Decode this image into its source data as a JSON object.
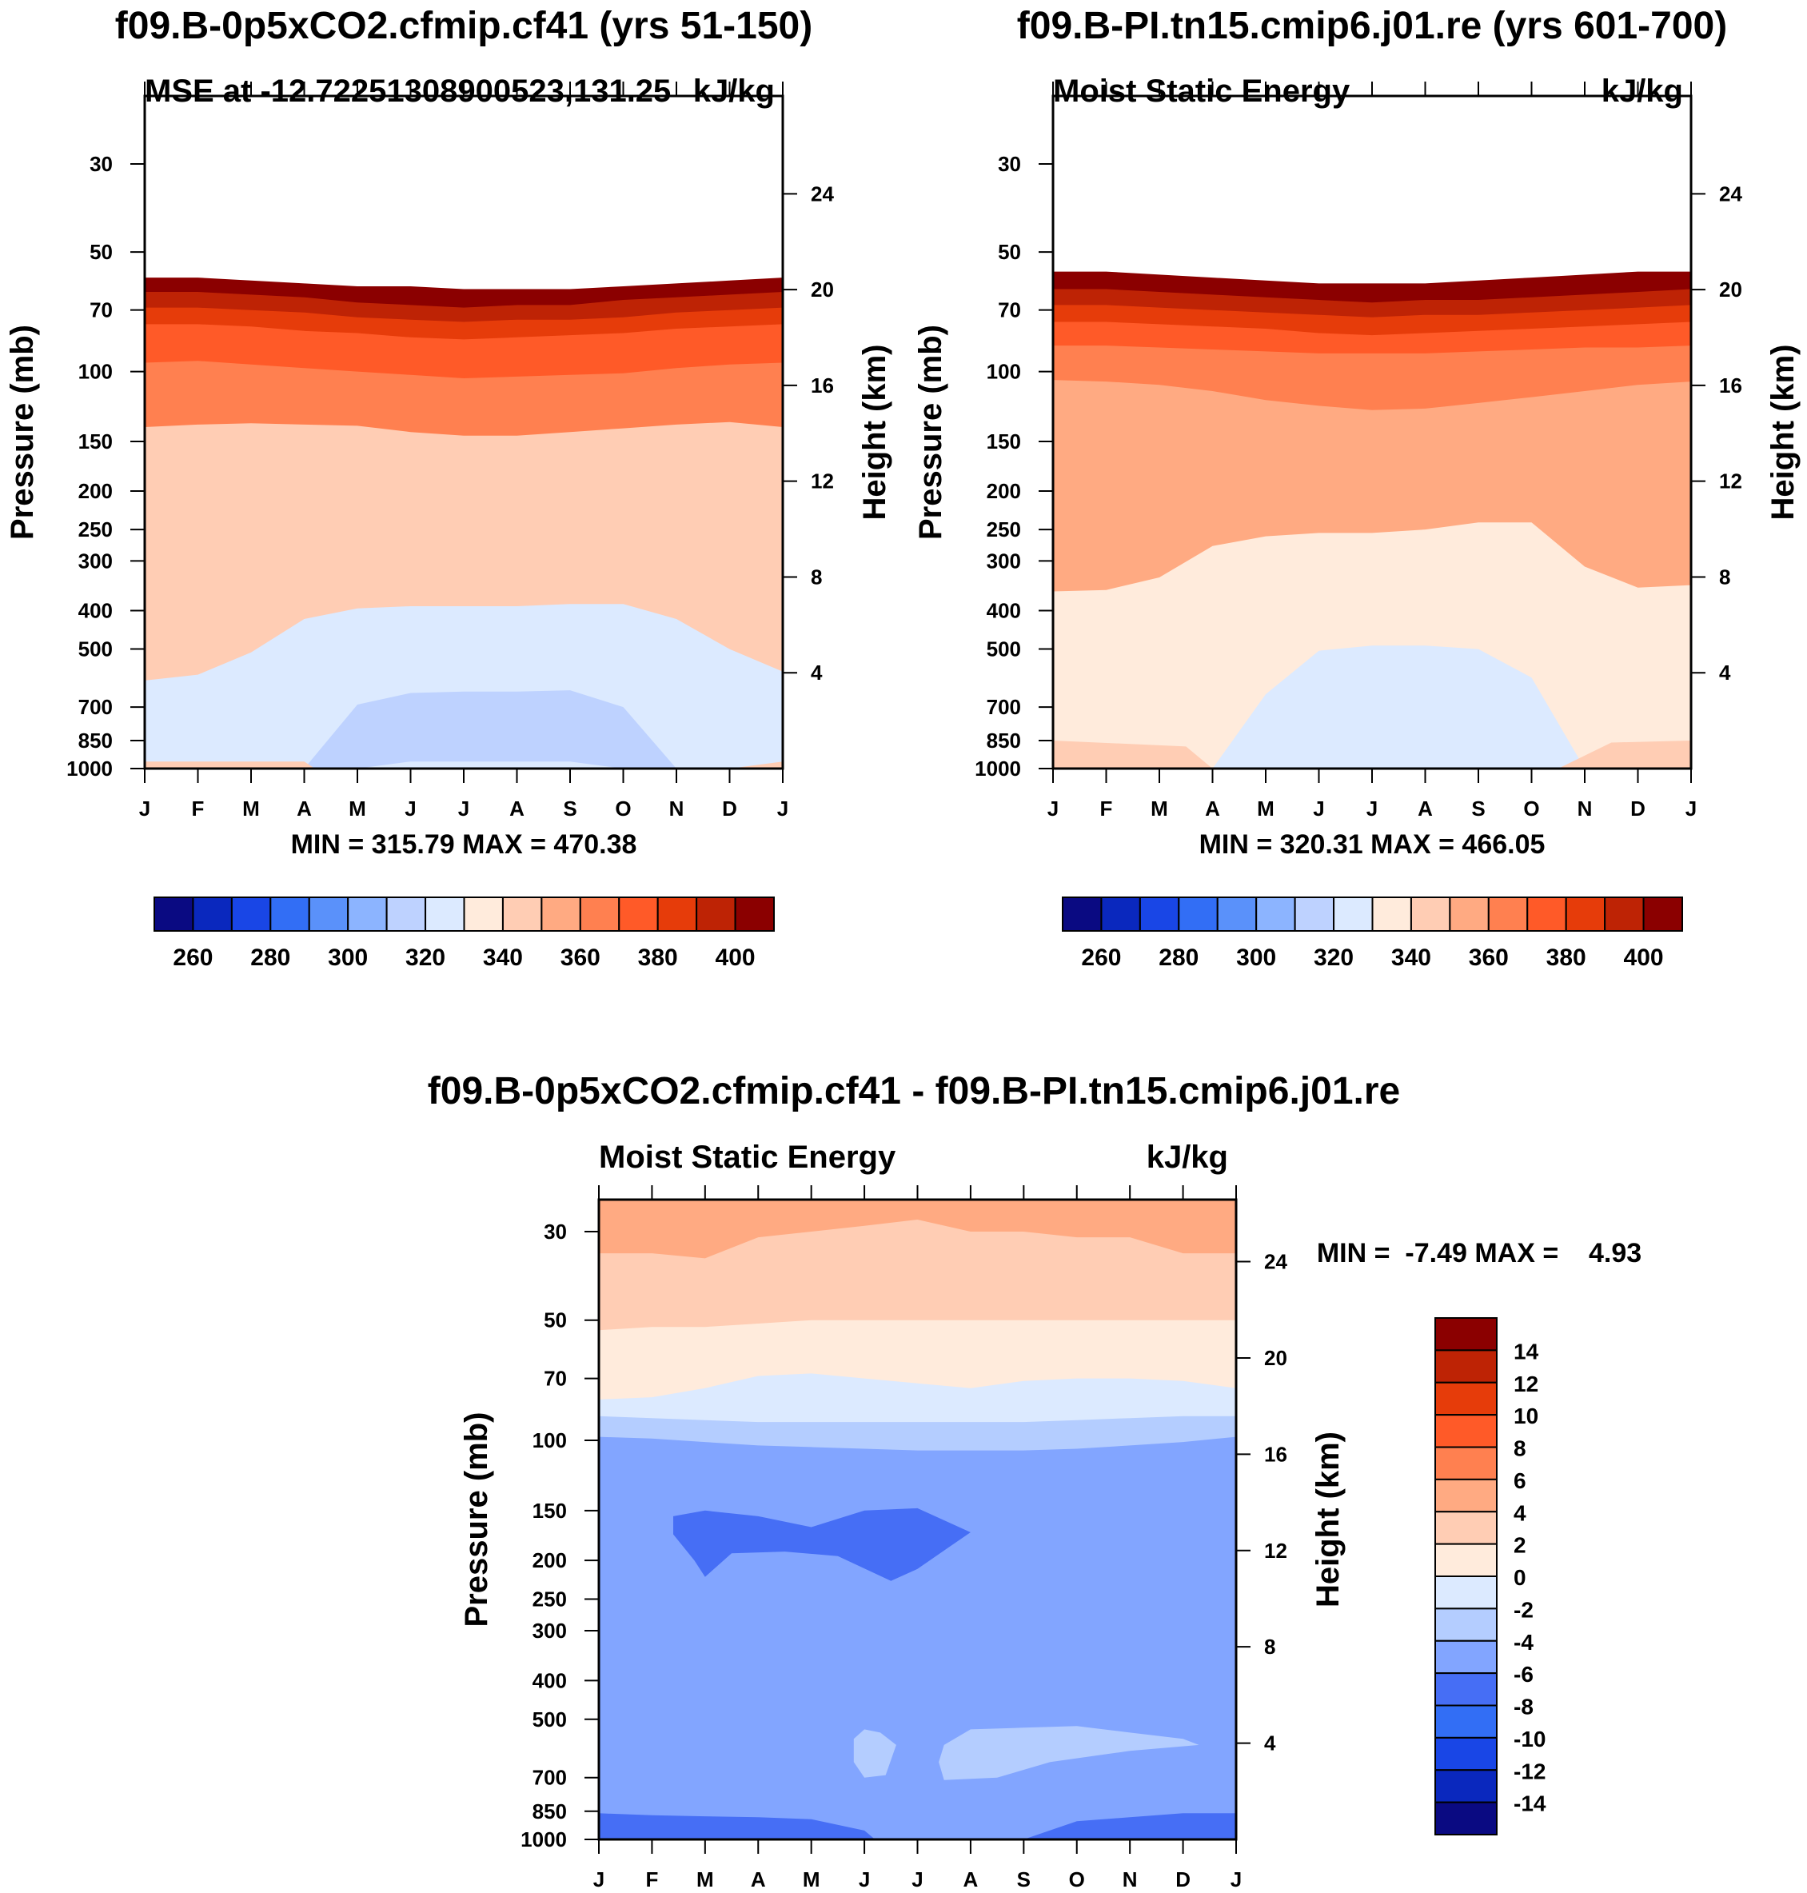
{
  "chart_data": [
    {
      "type": "contour",
      "panel": "top-left",
      "title": "f09.B-0p5xCO2.cfmip.cf41 (yrs 51-150)",
      "left_label": "MSE at -12.72251308900523,131.25",
      "units": "kJ/kg",
      "ylabel": "Pressure (mb)",
      "ylabel_right": "Height (km)",
      "x_ticks": [
        "J",
        "F",
        "M",
        "A",
        "M",
        "J",
        "J",
        "A",
        "S",
        "O",
        "N",
        "D",
        "J"
      ],
      "y_ticks": [
        "30",
        "50",
        "70",
        "100",
        "150",
        "200",
        "250",
        "300",
        "400",
        "500",
        "700",
        "850",
        "1000"
      ],
      "y_ticks_right": [
        "24",
        "20",
        "16",
        "12",
        "8",
        "4"
      ],
      "minmax_text": "MIN = 315.79 MAX = 470.38",
      "min": 315.79,
      "max": 470.38,
      "colorbar": {
        "orientation": "horizontal",
        "labels": [
          "260",
          "280",
          "300",
          "320",
          "340",
          "360",
          "380",
          "400"
        ],
        "levels": [
          250,
          260,
          270,
          280,
          290,
          300,
          310,
          320,
          330,
          340,
          350,
          360,
          370,
          380,
          390,
          400,
          410
        ],
        "colors": [
          "#0a0a82",
          "#0a28be",
          "#1946e6",
          "#326ef5",
          "#5a91fa",
          "#8cb4ff",
          "#bed2ff",
          "#dceaff",
          "#ffebdc",
          "#ffcdb4",
          "#ffaa82",
          "#ff8050",
          "#ff5a28",
          "#e63c0a",
          "#be2305",
          "#8b0000"
        ]
      },
      "bands": [
        {
          "level": ">400",
          "color": "#8b0000",
          "top_pressure": [
            58,
            58,
            59,
            60,
            61,
            61,
            62,
            62,
            62,
            61,
            60,
            59,
            58
          ]
        },
        {
          "level": "390-400",
          "color": "#be2305",
          "top_pressure": [
            63,
            63,
            64,
            65,
            67,
            68,
            69,
            68,
            68,
            66,
            65,
            64,
            63
          ]
        },
        {
          "level": "380-390",
          "color": "#e63c0a",
          "top_pressure": [
            69,
            69,
            70,
            71,
            73,
            74,
            75,
            74,
            74,
            73,
            71,
            70,
            69
          ]
        },
        {
          "level": "370-380",
          "color": "#ff5a28",
          "top_pressure": [
            76,
            76,
            77,
            79,
            80,
            82,
            83,
            82,
            81,
            80,
            78,
            77,
            76
          ]
        },
        {
          "level": "360-370",
          "color": "#ff8050",
          "top_pressure": [
            95,
            94,
            96,
            98,
            100,
            102,
            104,
            103,
            102,
            101,
            98,
            96,
            95
          ]
        },
        {
          "level": "340-360",
          "color": "#ffcdb4",
          "top_pressure": [
            138,
            136,
            135,
            136,
            137,
            142,
            145,
            145,
            142,
            139,
            136,
            134,
            138
          ]
        },
        {
          "level": "320-340",
          "color": "#dceaff",
          "top_pressure": [
            600,
            580,
            510,
            420,
            395,
            390,
            390,
            390,
            385,
            385,
            420,
            500,
            570
          ]
        },
        {
          "level": "310-320",
          "color": "#bed2ff",
          "top_pressure": [
            1000,
            1000,
            1000,
            1000,
            690,
            645,
            640,
            640,
            635,
            700,
            1000,
            1000,
            1000
          ]
        },
        {
          "level": "320-340 (surface)",
          "color": "#dceaff",
          "top_pressure": [
            1000,
            1000,
            1000,
            1000,
            1000,
            960,
            960,
            960,
            960,
            1000,
            1000,
            1000,
            1000
          ]
        }
      ]
    },
    {
      "type": "contour",
      "panel": "top-right",
      "title": "f09.B-PI.tn15.cmip6.j01.re (yrs 601-700)",
      "left_label": "Moist Static Energy",
      "units": "kJ/kg",
      "ylabel": "Pressure (mb)",
      "ylabel_right": "Height (km)",
      "x_ticks": [
        "J",
        "F",
        "M",
        "A",
        "M",
        "J",
        "J",
        "A",
        "S",
        "O",
        "N",
        "D",
        "J"
      ],
      "y_ticks": [
        "30",
        "50",
        "70",
        "100",
        "150",
        "200",
        "250",
        "300",
        "400",
        "500",
        "700",
        "850",
        "1000"
      ],
      "y_ticks_right": [
        "24",
        "20",
        "16",
        "12",
        "8",
        "4"
      ],
      "minmax_text": "MIN = 320.31 MAX = 466.05",
      "min": 320.31,
      "max": 466.05,
      "colorbar": {
        "orientation": "horizontal",
        "labels": [
          "260",
          "280",
          "300",
          "320",
          "340",
          "360",
          "380",
          "400"
        ],
        "levels": [
          250,
          260,
          270,
          280,
          290,
          300,
          310,
          320,
          330,
          340,
          350,
          360,
          370,
          380,
          390,
          400,
          410
        ],
        "colors": [
          "#0a0a82",
          "#0a28be",
          "#1946e6",
          "#326ef5",
          "#5a91fa",
          "#8cb4ff",
          "#bed2ff",
          "#dceaff",
          "#ffebdc",
          "#ffcdb4",
          "#ffaa82",
          "#ff8050",
          "#ff5a28",
          "#e63c0a",
          "#be2305",
          "#8b0000"
        ]
      },
      "bands": [
        {
          "level": ">400",
          "color": "#8b0000",
          "top_pressure": [
            56,
            56,
            57,
            58,
            59,
            60,
            60,
            60,
            59,
            58,
            57,
            56,
            56
          ]
        },
        {
          "level": "390-400",
          "color": "#be2305",
          "top_pressure": [
            62,
            62,
            63,
            64,
            65,
            66,
            67,
            66,
            66,
            65,
            64,
            63,
            62
          ]
        },
        {
          "level": "380-390",
          "color": "#e63c0a",
          "top_pressure": [
            68,
            68,
            69,
            70,
            71,
            72,
            73,
            72,
            72,
            71,
            70,
            69,
            68
          ]
        },
        {
          "level": "370-380",
          "color": "#ff5a28",
          "top_pressure": [
            75,
            75,
            76,
            77,
            78,
            80,
            81,
            80,
            79,
            78,
            77,
            76,
            75
          ]
        },
        {
          "level": "360-370",
          "color": "#ff8050",
          "top_pressure": [
            86,
            86,
            87,
            88,
            89,
            90,
            90,
            90,
            89,
            88,
            87,
            87,
            86
          ]
        },
        {
          "level": "350-360",
          "color": "#ffaa82",
          "top_pressure": [
            105,
            106,
            108,
            112,
            118,
            122,
            125,
            124,
            120,
            116,
            112,
            108,
            106
          ]
        },
        {
          "level": "330-340",
          "color": "#ffebdc",
          "top_pressure": [
            358,
            355,
            330,
            275,
            260,
            255,
            255,
            250,
            240,
            240,
            310,
            350,
            345
          ]
        },
        {
          "level": "320-330",
          "color": "#dceaff",
          "top_pressure": [
            1000,
            1000,
            1000,
            1000,
            650,
            505,
            490,
            490,
            500,
            590,
            1000,
            1000,
            1000
          ]
        },
        {
          "level": "330-340 (surface)",
          "color": "#ffebdc",
          "top_pressure": [
            1000,
            1000,
            1000,
            1000,
            1000,
            1000,
            1000,
            1000,
            1000,
            1000,
            1000,
            1000,
            1000
          ]
        }
      ]
    },
    {
      "type": "contour",
      "panel": "bottom",
      "title": "f09.B-0p5xCO2.cfmip.cf41 - f09.B-PI.tn15.cmip6.j01.re",
      "left_label": "Moist Static Energy",
      "units": "kJ/kg",
      "ylabel": "Pressure (mb)",
      "ylabel_right": "Height (km)",
      "x_ticks": [
        "J",
        "F",
        "M",
        "A",
        "M",
        "J",
        "J",
        "A",
        "S",
        "O",
        "N",
        "D",
        "J"
      ],
      "y_ticks": [
        "30",
        "50",
        "70",
        "100",
        "150",
        "200",
        "250",
        "300",
        "400",
        "500",
        "700",
        "850",
        "1000"
      ],
      "y_ticks_right": [
        "24",
        "20",
        "16",
        "12",
        "8",
        "4"
      ],
      "minmax_text": "MIN =  -7.49 MAX =    4.93",
      "min": -7.49,
      "max": 4.93,
      "colorbar": {
        "orientation": "vertical",
        "labels": [
          "14",
          "12",
          "10",
          "8",
          "6",
          "4",
          "2",
          "0",
          "-2",
          "-4",
          "-6",
          "-8",
          "-10",
          "-12",
          "-14"
        ],
        "levels": [
          -16,
          -14,
          -12,
          -10,
          -8,
          -6,
          -4,
          -2,
          0,
          2,
          4,
          6,
          8,
          10,
          12,
          14,
          16
        ],
        "colors": [
          "#0a0a82",
          "#0a28be",
          "#1946e6",
          "#326ef5",
          "#466ef5",
          "#82a5ff",
          "#b4cdff",
          "#dceaff",
          "#ffebdc",
          "#ffcdb4",
          "#ffaa82",
          "#ff8050",
          "#ff5a28",
          "#e63c0a",
          "#be2305",
          "#8b0000"
        ]
      },
      "bands": [
        {
          "level": "4-6",
          "color": "#ffaa82",
          "top_pressure": [
            20,
            20,
            20,
            20,
            20,
            20,
            20,
            20,
            20,
            20,
            20,
            20,
            20
          ]
        },
        {
          "level": "2-4",
          "color": "#ffcdb4",
          "top_pressure": [
            34,
            34,
            35,
            31,
            30,
            29,
            28,
            30,
            30,
            31,
            31,
            34,
            34
          ]
        },
        {
          "level": "0-2",
          "color": "#ffebdc",
          "top_pressure": [
            53,
            52,
            52,
            51,
            50,
            50,
            50,
            50,
            50,
            50,
            50,
            50,
            50
          ]
        },
        {
          "level": "-2-0",
          "color": "#dceaff",
          "top_pressure": [
            79,
            78,
            74,
            69,
            68,
            70,
            72,
            74,
            71,
            70,
            70,
            71,
            74
          ]
        },
        {
          "level": "-4--2",
          "color": "#b4cdff",
          "top_pressure": [
            87,
            88,
            89,
            90,
            90,
            90,
            90,
            90,
            90,
            89,
            88,
            87,
            87
          ]
        },
        {
          "level": "-6--4",
          "color": "#82a5ff",
          "top_pressure": [
            98,
            99,
            101,
            103,
            104,
            105,
            106,
            106,
            106,
            105,
            103,
            101,
            98
          ]
        },
        {
          "level": "-6--4 (near surface)",
          "color": "#82a5ff",
          "top_pressure": [
            1000,
            1000,
            1000,
            1000,
            1000,
            1000,
            1000,
            1000,
            1000,
            1000,
            1000,
            1000,
            1000
          ]
        }
      ],
      "features": [
        {
          "level": "-8--6",
          "color": "#466ef5",
          "note": "pocket near 150-200 mb, Mar-Aug"
        },
        {
          "level": "-4--2",
          "color": "#b4cdff",
          "note": "patch near 500-700 mb, Jun"
        },
        {
          "level": "-4--2",
          "color": "#b4cdff",
          "note": "tongue near 500-700 mb, Jul-Dec"
        },
        {
          "level": "-8--6",
          "color": "#466ef5",
          "note": "near-surface layer 850-1000 mb"
        }
      ]
    }
  ]
}
